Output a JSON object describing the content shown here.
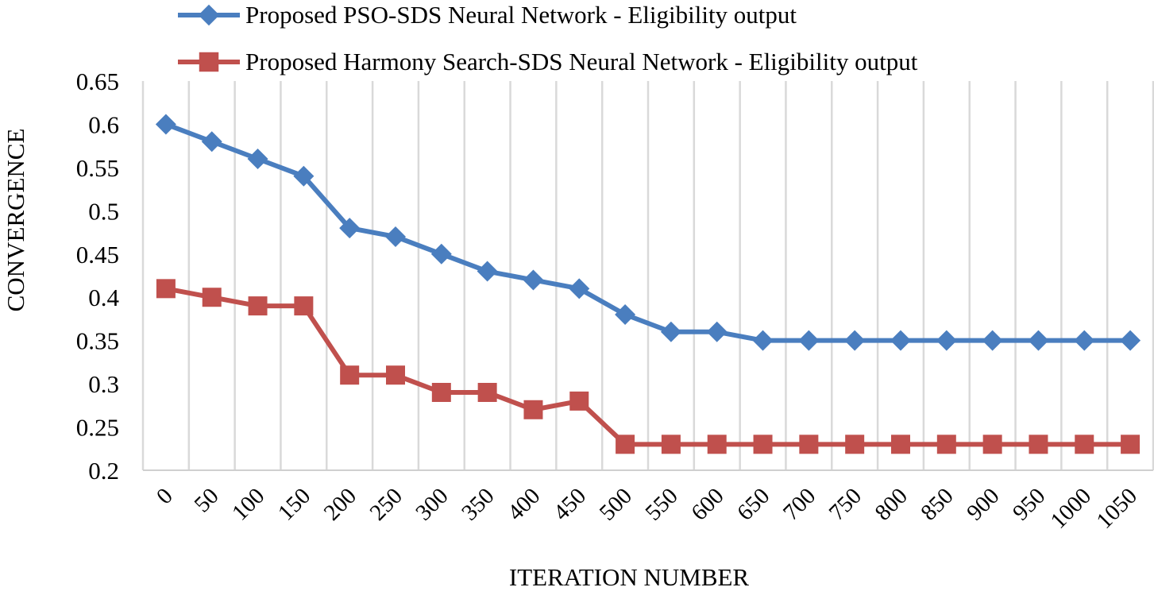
{
  "chart_data": {
    "type": "line",
    "title": "",
    "xlabel": "ITERATION NUMBER",
    "ylabel": "CONVERGENCE",
    "categories": [
      "0",
      "50",
      "100",
      "150",
      "200",
      "250",
      "300",
      "350",
      "400",
      "450",
      "500",
      "550",
      "600",
      "650",
      "700",
      "750",
      "800",
      "850",
      "900",
      "950",
      "1000",
      "1050"
    ],
    "ylim": [
      0.2,
      0.65
    ],
    "yticks": [
      "0.2",
      "0.25",
      "0.3",
      "0.35",
      "0.4",
      "0.45",
      "0.5",
      "0.55",
      "0.6",
      "0.65"
    ],
    "grid": "vertical",
    "legend_position": "top",
    "series": [
      {
        "name": "Proposed PSO-SDS Neural Network - Eligibility output",
        "color": "#4a7ebf",
        "marker": "diamond",
        "values": [
          0.6,
          0.58,
          0.56,
          0.54,
          0.48,
          0.47,
          0.45,
          0.43,
          0.42,
          0.41,
          0.38,
          0.36,
          0.36,
          0.35,
          0.35,
          0.35,
          0.35,
          0.35,
          0.35,
          0.35,
          0.35,
          0.35
        ]
      },
      {
        "name": "Proposed Harmony Search-SDS Neural Network - Eligibility output",
        "color": "#c0504d",
        "marker": "square",
        "values": [
          0.41,
          0.4,
          0.39,
          0.39,
          0.31,
          0.31,
          0.29,
          0.29,
          0.27,
          0.28,
          0.23,
          0.23,
          0.23,
          0.23,
          0.23,
          0.23,
          0.23,
          0.23,
          0.23,
          0.23,
          0.23,
          0.23
        ]
      }
    ]
  }
}
